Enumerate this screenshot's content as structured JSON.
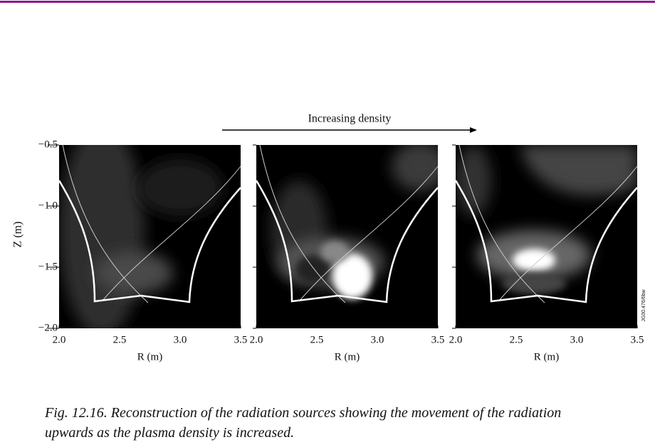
{
  "header": {
    "annotation": "Increasing density"
  },
  "chart_data": [
    {
      "type": "heatmap",
      "xlabel": "R (m)",
      "ylabel": "Z (m)",
      "xlim": [
        2.0,
        3.5
      ],
      "ylim": [
        -2.0,
        -0.5
      ],
      "xticks": [
        {
          "value": 2.0,
          "label": "2.0"
        },
        {
          "value": 2.5,
          "label": "2.5"
        },
        {
          "value": 3.0,
          "label": "3.0"
        },
        {
          "value": 3.5,
          "label": "3.5"
        }
      ],
      "yticks": [
        {
          "value": -0.5,
          "label": "−0.5"
        },
        {
          "value": -1.0,
          "label": "−1.0"
        },
        {
          "value": -1.5,
          "label": "−1.5"
        },
        {
          "value": -2.0,
          "label": "−2.0"
        }
      ]
    },
    {
      "type": "heatmap",
      "xlabel": "R (m)",
      "xlim": [
        2.0,
        3.5
      ],
      "ylim": [
        -2.0,
        -0.5
      ],
      "xticks": [
        {
          "value": 2.0,
          "label": "2.0"
        },
        {
          "value": 2.5,
          "label": "2.5"
        },
        {
          "value": 3.0,
          "label": "3.0"
        },
        {
          "value": 3.5,
          "label": "3.5"
        }
      ]
    },
    {
      "type": "heatmap",
      "xlabel": "R (m)",
      "xlim": [
        2.0,
        3.5
      ],
      "ylim": [
        -2.0,
        -0.5
      ],
      "xticks": [
        {
          "value": 2.0,
          "label": "2.0"
        },
        {
          "value": 2.5,
          "label": "2.5"
        },
        {
          "value": 3.0,
          "label": "3.0"
        },
        {
          "value": 3.5,
          "label": "3.5"
        }
      ]
    }
  ],
  "figure_code": "JG00.476/6bw",
  "caption": {
    "lines": [
      "Fig. 12.16. Reconstruction of the radiation sources showing the movement of the radiation",
      "upwards as the plasma density is increased."
    ]
  }
}
